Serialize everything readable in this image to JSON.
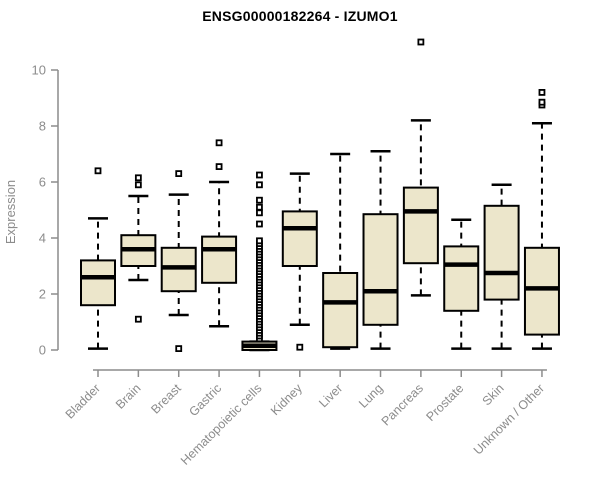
{
  "header": {
    "title": "ENSG00000182264 - IZUMO1"
  },
  "chart_data": {
    "type": "boxplot",
    "title": "ENSG00000182264 - IZUMO1",
    "xlabel": "",
    "ylabel": "Expression",
    "ylim": [
      0,
      10
    ],
    "yticks": [
      0,
      2,
      4,
      6,
      8,
      10
    ],
    "grid": false,
    "legend": "none",
    "categories": [
      "Bladder",
      "Brain",
      "Breast",
      "Gastric",
      "Hematopoietic cells",
      "Kidney",
      "Liver",
      "Lung",
      "Pancreas",
      "Prostate",
      "Skin",
      "Unknown / Other"
    ],
    "series": [
      {
        "name": "Bladder",
        "low": 0.05,
        "q1": 1.6,
        "median": 2.6,
        "q3": 3.2,
        "high": 4.7,
        "outliers": [
          6.4
        ]
      },
      {
        "name": "Brain",
        "low": 2.5,
        "q1": 3.0,
        "median": 3.6,
        "q3": 4.1,
        "high": 5.5,
        "outliers": [
          1.1,
          5.9,
          6.15
        ]
      },
      {
        "name": "Breast",
        "low": 1.25,
        "q1": 2.1,
        "median": 2.95,
        "q3": 3.65,
        "high": 5.55,
        "outliers": [
          0.05,
          6.3
        ]
      },
      {
        "name": "Gastric",
        "low": 0.85,
        "q1": 2.4,
        "median": 3.6,
        "q3": 4.05,
        "high": 6.0,
        "outliers": [
          6.55,
          7.4
        ]
      },
      {
        "name": "Hematopoietic cells",
        "low": 0.0,
        "q1": 0.0,
        "median": 0.15,
        "q3": 0.3,
        "high": 0.3,
        "outliers": [
          0.4,
          0.5,
          0.6,
          0.7,
          0.8,
          0.9,
          1.0,
          1.1,
          1.2,
          1.3,
          1.4,
          1.5,
          1.6,
          1.7,
          1.8,
          1.9,
          2.0,
          2.1,
          2.2,
          2.3,
          2.4,
          2.5,
          2.6,
          2.7,
          2.8,
          2.9,
          3.0,
          3.1,
          3.2,
          3.3,
          3.4,
          3.5,
          3.6,
          3.7,
          3.8,
          3.9,
          4.5,
          4.9,
          5.1,
          5.35,
          5.9,
          6.25
        ]
      },
      {
        "name": "Kidney",
        "low": 0.9,
        "q1": 3.0,
        "median": 4.35,
        "q3": 4.95,
        "high": 6.3,
        "outliers": [
          0.1
        ]
      },
      {
        "name": "Liver",
        "low": 0.05,
        "q1": 0.1,
        "median": 1.7,
        "q3": 2.75,
        "high": 7.0,
        "outliers": []
      },
      {
        "name": "Lung",
        "low": 0.05,
        "q1": 0.9,
        "median": 2.1,
        "q3": 4.85,
        "high": 7.1,
        "outliers": []
      },
      {
        "name": "Pancreas",
        "low": 1.95,
        "q1": 3.1,
        "median": 4.95,
        "q3": 5.8,
        "high": 8.2,
        "outliers": [
          11.0
        ]
      },
      {
        "name": "Prostate",
        "low": 0.05,
        "q1": 1.4,
        "median": 3.05,
        "q3": 3.7,
        "high": 4.65,
        "outliers": []
      },
      {
        "name": "Skin",
        "low": 0.05,
        "q1": 1.8,
        "median": 2.75,
        "q3": 5.15,
        "high": 5.9,
        "outliers": []
      },
      {
        "name": "Unknown / Other",
        "low": 0.05,
        "q1": 0.55,
        "median": 2.2,
        "q3": 3.65,
        "high": 8.1,
        "outliers": [
          8.75,
          8.85,
          9.2
        ]
      }
    ],
    "colors": {
      "box_fill": "#ece6cb",
      "box_stroke": "#000000",
      "median": "#000000",
      "whisker": "#000000",
      "axis": "#8c8c8c",
      "tick_label": "#8c8c8c",
      "title": "#000000",
      "background": "#ffffff"
    }
  }
}
